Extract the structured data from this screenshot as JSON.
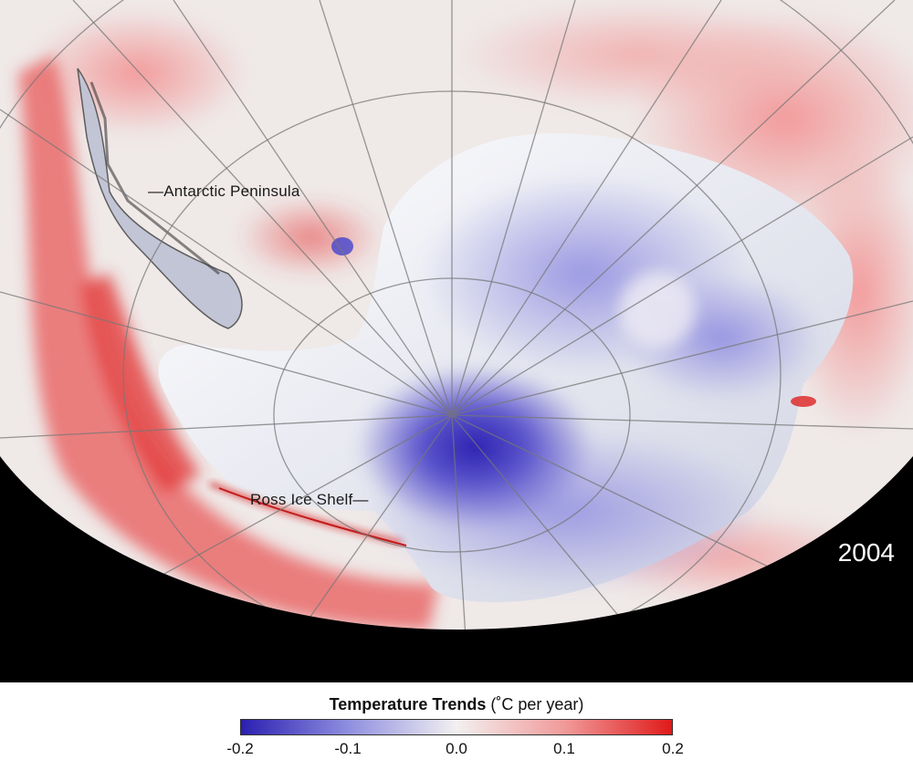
{
  "map": {
    "labels": {
      "peninsula": "—Antarctic Peninsula",
      "ross": "Ross Ice Shelf—"
    },
    "year": "2004"
  },
  "legend": {
    "title_bold": "Temperature Trends",
    "title_unit": " (˚C per year)",
    "ticks": [
      "-0.2",
      "-0.1",
      "0.0",
      "0.1",
      "0.2"
    ],
    "colors": {
      "cold": "#2a1fb0",
      "mid_cold": "#8f8fe0",
      "neutral": "#f2f0f0",
      "mid_warm": "#f19a9a",
      "warm": "#e01a1a"
    }
  }
}
